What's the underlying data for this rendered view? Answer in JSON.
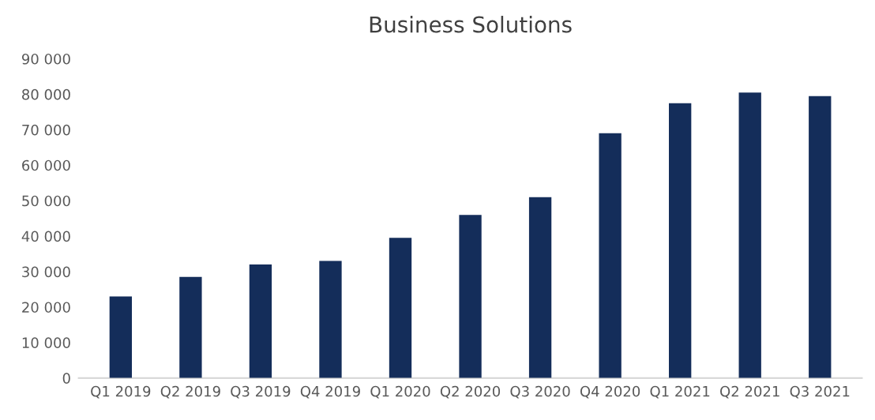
{
  "chart_data": {
    "type": "bar",
    "title": "Business Solutions",
    "categories": [
      "Q1 2019",
      "Q2 2019",
      "Q3 2019",
      "Q4 2019",
      "Q1 2020",
      "Q2 2020",
      "Q3 2020",
      "Q4 2020",
      "Q1 2021",
      "Q2 2021",
      "Q3 2021"
    ],
    "values": [
      23000,
      28500,
      32000,
      33000,
      39500,
      46000,
      51000,
      69000,
      77500,
      80500,
      79500
    ],
    "color": "#142d5a",
    "ylim": [
      0,
      90000
    ],
    "yticks": [
      {
        "value": 0,
        "label": "0"
      },
      {
        "value": 10000,
        "label": "10 000"
      },
      {
        "value": 20000,
        "label": "20 000"
      },
      {
        "value": 30000,
        "label": "30 000"
      },
      {
        "value": 40000,
        "label": "40 000"
      },
      {
        "value": 50000,
        "label": "50 000"
      },
      {
        "value": 60000,
        "label": "60 000"
      },
      {
        "value": 70000,
        "label": "70 000"
      },
      {
        "value": 80000,
        "label": "80 000"
      },
      {
        "value": 90000,
        "label": "90 000"
      }
    ],
    "grid": false,
    "legend": false
  }
}
